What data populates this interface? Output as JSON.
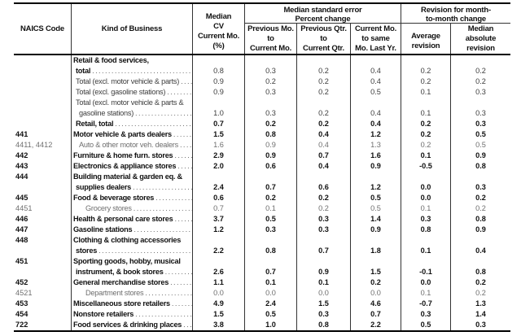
{
  "header": {
    "naics": "NAICS Code",
    "kind": "Kind of Business",
    "cv_lines": [
      "Median",
      "CV",
      "Current Mo.",
      "(%)"
    ],
    "se_group": [
      "Median standard error",
      "Percent change"
    ],
    "rev_group": [
      "Revision for month-",
      "to-month change"
    ],
    "se1": [
      "Previous Mo.",
      "to",
      "Current Mo."
    ],
    "se2": [
      "Previous Qtr.",
      "to",
      "Current Qtr."
    ],
    "se3": [
      "Current Mo.",
      "to same",
      "Mo. Last Yr."
    ],
    "avg": [
      "Average",
      "revision"
    ],
    "medabs": [
      "Median",
      "absolute",
      "revision"
    ]
  },
  "leader": "...........................................................................................................",
  "chart_data": {
    "type": "table",
    "columns": [
      "NAICS Code",
      "Kind of Business",
      "Median CV Current Mo. (%)",
      "Median standard error Percent change: Previous Mo. to Current Mo.",
      "Median standard error Percent change: Previous Qtr. to Current Qtr.",
      "Median standard error Percent change: Current Mo. to same Mo. Last Yr.",
      "Revision for month-to-month change: Average revision",
      "Revision for month-to-month change: Median absolute revision"
    ],
    "rows": [
      {
        "naics": "",
        "lines": [
          {
            "t": "Retail & food services,",
            "i": 0
          },
          {
            "t": "total",
            "i": 1
          }
        ],
        "style": "lead",
        "values": [
          "0.8",
          "0.3",
          "0.2",
          "0.4",
          "0.2",
          "0.2"
        ]
      },
      {
        "naics": "",
        "lines": [
          {
            "t": "Total (excl. motor vehicle & parts)",
            "i": 1
          }
        ],
        "style": "plain",
        "values": [
          "0.9",
          "0.2",
          "0.2",
          "0.4",
          "0.2",
          "0.2"
        ]
      },
      {
        "naics": "",
        "lines": [
          {
            "t": "Total (excl. gasoline stations)",
            "i": 1
          }
        ],
        "style": "plain",
        "values": [
          "0.9",
          "0.3",
          "0.2",
          "0.5",
          "0.1",
          "0.3"
        ]
      },
      {
        "naics": "",
        "lines": [
          {
            "t": "Total (excl. motor vehicle & parts &",
            "i": 1
          },
          {
            "t": "gasoline stations)",
            "i": 2
          }
        ],
        "style": "plain",
        "values": [
          "1.0",
          "0.3",
          "0.2",
          "0.4",
          "0.1",
          "0.3"
        ]
      },
      {
        "naics": "",
        "lines": [
          {
            "t": "Retail, total",
            "i": 1
          }
        ],
        "style": "bold",
        "values": [
          "0.7",
          "0.2",
          "0.2",
          "0.4",
          "0.2",
          "0.3"
        ]
      },
      {
        "naics": "441",
        "lines": [
          {
            "t": "Motor vehicle & parts dealers",
            "i": 0
          }
        ],
        "style": "bold",
        "values": [
          "1.5",
          "0.8",
          "0.4",
          "1.2",
          "0.2",
          "0.5"
        ]
      },
      {
        "naics": "4411, 4412",
        "lines": [
          {
            "t": "Auto & other motor veh. dealers",
            "i": 2
          }
        ],
        "style": "sub",
        "values": [
          "1.6",
          "0.9",
          "0.4",
          "1.3",
          "0.2",
          "0.5"
        ]
      },
      {
        "naics": "442",
        "lines": [
          {
            "t": "Furniture & home furn. stores",
            "i": 0
          }
        ],
        "style": "bold",
        "values": [
          "2.9",
          "0.9",
          "0.7",
          "1.6",
          "0.1",
          "0.9"
        ]
      },
      {
        "naics": "443",
        "lines": [
          {
            "t": "Electronics & appliance stores",
            "i": 0
          }
        ],
        "style": "bold",
        "values": [
          "2.0",
          "0.6",
          "0.4",
          "0.9",
          "-0.5",
          "0.8"
        ]
      },
      {
        "naics": "444",
        "lines": [
          {
            "t": "Building material & garden eq. &",
            "i": 0
          },
          {
            "t": "supplies dealers",
            "i": 1
          }
        ],
        "style": "bold",
        "values": [
          "2.4",
          "0.7",
          "0.6",
          "1.2",
          "0.0",
          "0.3"
        ]
      },
      {
        "naics": "445",
        "lines": [
          {
            "t": "Food & beverage stores",
            "i": 0
          }
        ],
        "style": "bold",
        "values": [
          "0.6",
          "0.2",
          "0.2",
          "0.5",
          "0.0",
          "0.2"
        ]
      },
      {
        "naics": "4451",
        "lines": [
          {
            "t": "Grocery stores",
            "i": 3
          }
        ],
        "style": "sub",
        "values": [
          "0.7",
          "0.1",
          "0.2",
          "0.5",
          "0.1",
          "0.2"
        ]
      },
      {
        "naics": "446",
        "lines": [
          {
            "t": "Health & personal care stores",
            "i": 0
          }
        ],
        "style": "bold",
        "values": [
          "3.7",
          "0.5",
          "0.3",
          "1.4",
          "0.3",
          "0.8"
        ]
      },
      {
        "naics": "447",
        "lines": [
          {
            "t": "Gasoline stations",
            "i": 0
          }
        ],
        "style": "bold",
        "values": [
          "1.2",
          "0.3",
          "0.3",
          "0.9",
          "0.8",
          "0.9"
        ]
      },
      {
        "naics": "448",
        "lines": [
          {
            "t": "Clothing & clothing accessories",
            "i": 0
          },
          {
            "t": "stores",
            "i": 1
          }
        ],
        "style": "bold",
        "values": [
          "2.2",
          "0.8",
          "0.7",
          "1.8",
          "0.1",
          "0.4"
        ]
      },
      {
        "naics": "451",
        "lines": [
          {
            "t": "Sporting goods, hobby, musical",
            "i": 0
          },
          {
            "t": "instrument, & book stores",
            "i": 1
          }
        ],
        "style": "bold",
        "values": [
          "2.6",
          "0.7",
          "0.9",
          "1.5",
          "-0.1",
          "0.8"
        ]
      },
      {
        "naics": "452",
        "lines": [
          {
            "t": "General merchandise stores",
            "i": 0
          }
        ],
        "style": "bold",
        "values": [
          "1.1",
          "0.1",
          "0.1",
          "0.2",
          "0.0",
          "0.2"
        ]
      },
      {
        "naics": "4521",
        "lines": [
          {
            "t": "Department stores",
            "i": 3
          }
        ],
        "style": "sub",
        "values": [
          "0.0",
          "0.0",
          "0.0",
          "0.0",
          "0.1",
          "0.2"
        ]
      },
      {
        "naics": "453",
        "lines": [
          {
            "t": "Miscellaneous store retailers",
            "i": 0
          }
        ],
        "style": "bold",
        "values": [
          "4.9",
          "2.4",
          "1.5",
          "4.6",
          "-0.7",
          "1.3"
        ]
      },
      {
        "naics": "454",
        "lines": [
          {
            "t": "Nonstore retailers",
            "i": 0
          }
        ],
        "style": "bold",
        "values": [
          "1.5",
          "0.5",
          "0.3",
          "0.7",
          "0.3",
          "1.4"
        ]
      },
      {
        "naics": "722",
        "lines": [
          {
            "t": "Food services & drinking places",
            "i": 0
          }
        ],
        "style": "bold",
        "values": [
          "3.8",
          "1.0",
          "0.8",
          "2.2",
          "0.5",
          "0.3"
        ]
      }
    ]
  }
}
